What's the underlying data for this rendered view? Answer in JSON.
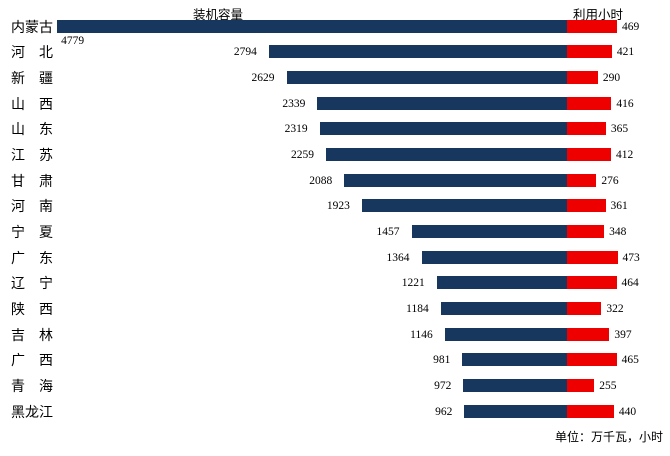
{
  "headers": {
    "capacity": "装机容量",
    "hours": "利用小时"
  },
  "footer": {
    "units_note": "单位：万千瓦，小时"
  },
  "colors": {
    "capacity_bar": "#17375E",
    "hours_bar": "#EE0000",
    "text": "#000000",
    "background": "#FFFFFF"
  },
  "chart_data": {
    "type": "bar",
    "orientation": "horizontal",
    "layout": "back-to-back: capacity bars grow leftward and hours bars grow rightward from a shared baseline; value labels at outer bar ends; no axes or gridlines",
    "categories": [
      "内蒙古",
      "河　北",
      "新　疆",
      "山　西",
      "山　东",
      "江　苏",
      "甘　肃",
      "河　南",
      "宁　夏",
      "广　东",
      "辽　宁",
      "陕　西",
      "吉　林",
      "广　西",
      "青　海",
      "黑龙江"
    ],
    "series": [
      {
        "name": "装机容量",
        "unit": "万千瓦",
        "color": "#17375E",
        "values": [
          4779,
          2794,
          2629,
          2339,
          2319,
          2259,
          2088,
          1923,
          1457,
          1364,
          1221,
          1184,
          1146,
          981,
          972,
          962
        ]
      },
      {
        "name": "利用小时",
        "unit": "小时",
        "color": "#EE0000",
        "values": [
          469,
          421,
          290,
          416,
          365,
          412,
          276,
          361,
          348,
          473,
          464,
          322,
          397,
          465,
          255,
          440
        ]
      }
    ],
    "value_labels": "shown",
    "units_note": "单位：万千瓦，小时"
  }
}
